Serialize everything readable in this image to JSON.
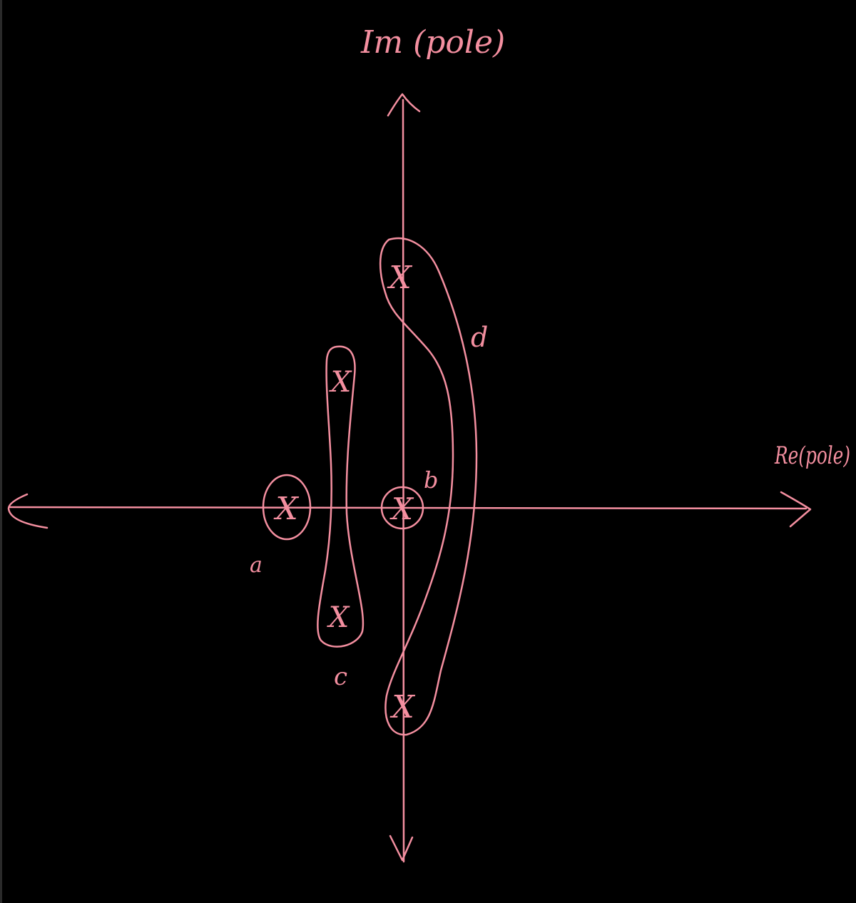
{
  "colors": {
    "background": "#000000",
    "ink": "#F48FA0"
  },
  "axes": {
    "imaginary_label": "Im (pole)",
    "real_label": "Re(pole)"
  },
  "groups": {
    "a": {
      "label": "a",
      "pole_count": 1
    },
    "b": {
      "label": "b",
      "pole_count": 1
    },
    "c": {
      "label": "c",
      "pole_count": 2
    },
    "d": {
      "label": "d",
      "pole_count": 2
    }
  },
  "pole_marker": "X"
}
